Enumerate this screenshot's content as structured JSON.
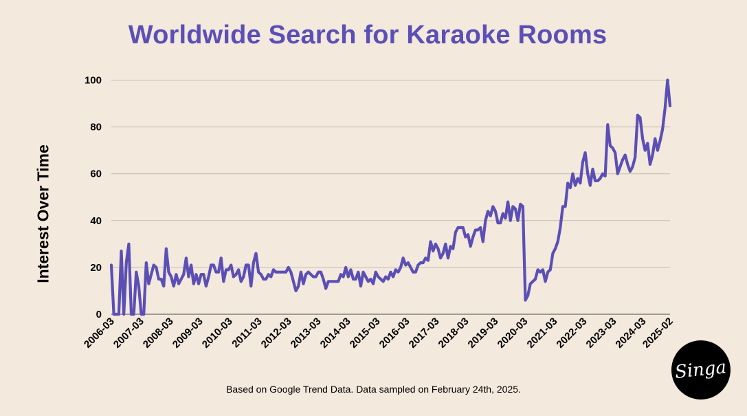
{
  "title": "Worldwide Search for Karaoke Rooms",
  "footnote": "Based on Google Trend Data. Data sampled on February 24th, 2025.",
  "logo_text": "Singa",
  "chart_data": {
    "type": "line",
    "title": "Worldwide Search for Karaoke Rooms",
    "xlabel": "",
    "ylabel": "Interest Over Time",
    "ylim": [
      0,
      100
    ],
    "yticks": [
      0,
      20,
      40,
      60,
      80,
      100
    ],
    "grid": true,
    "line_color": "#5b4fb6",
    "xtick_labels": [
      "2006-03",
      "2007-03",
      "2008-03",
      "2009-03",
      "2010-03",
      "2011-03",
      "2012-03",
      "2013-03",
      "2014-03",
      "2015-03",
      "2016-03",
      "2017-03",
      "2018-03",
      "2019-03",
      "2020-03",
      "2021-03",
      "2022-03",
      "2023-03",
      "2024-03",
      "2025-02"
    ],
    "x_start": "2006-03",
    "x_end": "2025-02",
    "series": [
      {
        "values": [
          21,
          0,
          0,
          0,
          27,
          0,
          22,
          30,
          0,
          0,
          18,
          12,
          0,
          0,
          22,
          13,
          17,
          21,
          20,
          15,
          15,
          12,
          28,
          18,
          16,
          12,
          17,
          13,
          15,
          17,
          24,
          16,
          21,
          13,
          17,
          13,
          17,
          17,
          12,
          16,
          21,
          21,
          18,
          18,
          24,
          14,
          19,
          19,
          21,
          16,
          17,
          19,
          14,
          16,
          21,
          21,
          12,
          22,
          26,
          18,
          17,
          15,
          15,
          17,
          16,
          19,
          18,
          18,
          18,
          18,
          18,
          20,
          18,
          14,
          10,
          12,
          18,
          13,
          17,
          18,
          17,
          16,
          16,
          18,
          18,
          15,
          11,
          14,
          14,
          14,
          14,
          14,
          17,
          16,
          20,
          16,
          19,
          15,
          15,
          18,
          12,
          18,
          16,
          14,
          15,
          13,
          18,
          16,
          15,
          14,
          16,
          15,
          18,
          16,
          19,
          18,
          20,
          24,
          21,
          22,
          20,
          18,
          18,
          21,
          22,
          22,
          24,
          23,
          31,
          27,
          30,
          28,
          24,
          26,
          30,
          24,
          29,
          28,
          35,
          37,
          37,
          37,
          33,
          34,
          29,
          33,
          36,
          36,
          37,
          31,
          40,
          44,
          42,
          46,
          44,
          39,
          39,
          43,
          41,
          48,
          40,
          46,
          45,
          40,
          47,
          46,
          6,
          8,
          13,
          14,
          15,
          19,
          18,
          19,
          14,
          18,
          19,
          26,
          28,
          31,
          37,
          46,
          46,
          56,
          54,
          60,
          55,
          58,
          56,
          65,
          69,
          60,
          55,
          62,
          57,
          57,
          58,
          60,
          59,
          81,
          72,
          71,
          69,
          60,
          63,
          66,
          68,
          64,
          61,
          63,
          67,
          85,
          84,
          75,
          70,
          73,
          64,
          68,
          75,
          70,
          74,
          79,
          88,
          100,
          89
        ]
      }
    ]
  }
}
